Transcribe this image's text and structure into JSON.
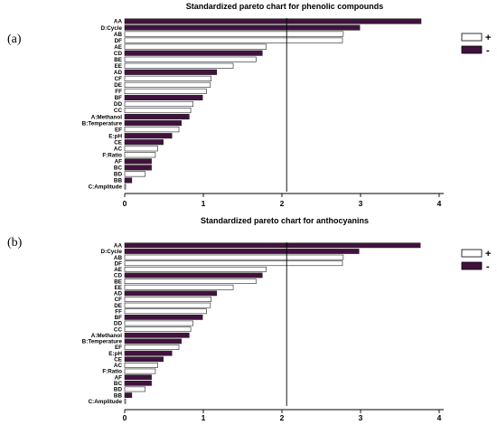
{
  "panels": [
    {
      "label": "(a)"
    },
    {
      "label": "(b)"
    }
  ],
  "colors": {
    "negative": "#42123f",
    "positive": "#ffffff",
    "outline": "#222222"
  },
  "chart_data": [
    {
      "type": "bar",
      "orientation": "horizontal",
      "title": "Standardized pareto chart for phenolic compounds",
      "categories": [
        "AA",
        "D:Cycle",
        "AB",
        "DF",
        "AE",
        "CD",
        "BE",
        "EE",
        "AD",
        "CF",
        "DE",
        "FF",
        "BF",
        "DD",
        "CC",
        "A:Methanol",
        "B:Temperature",
        "EF",
        "E:pH",
        "CE",
        "AC",
        "F:Ratio",
        "AF",
        "BC",
        "BD",
        "BB",
        "C:Amplitude"
      ],
      "values": [
        3.77,
        2.99,
        2.78,
        2.77,
        1.8,
        1.75,
        1.67,
        1.38,
        1.17,
        1.1,
        1.09,
        1.04,
        0.99,
        0.87,
        0.84,
        0.82,
        0.72,
        0.69,
        0.6,
        0.49,
        0.42,
        0.39,
        0.34,
        0.34,
        0.26,
        0.09,
        0.01
      ],
      "signs": [
        "-",
        "-",
        "+",
        "+",
        "+",
        "-",
        "+",
        "+",
        "-",
        "+",
        "+",
        "+",
        "-",
        "+",
        "+",
        "-",
        "-",
        "+",
        "-",
        "-",
        "+",
        "+",
        "-",
        "-",
        "+",
        "-",
        "+"
      ],
      "legend": [
        "+",
        "-"
      ],
      "legend_position": "top-right",
      "reference_line": 2.06,
      "xticks": [
        "0",
        "1",
        "2",
        "3",
        "4"
      ],
      "xlim": [
        0,
        4.1
      ]
    },
    {
      "type": "bar",
      "orientation": "horizontal",
      "title": "Standardized pareto chart for anthocyanins",
      "categories": [
        "AA",
        "D:Cycle",
        "AB",
        "DF",
        "AE",
        "CD",
        "BE",
        "EE",
        "AD",
        "CF",
        "DE",
        "FF",
        "BF",
        "DD",
        "CC",
        "A:Methanol",
        "B:Temperature",
        "EF",
        "E:pH",
        "CE",
        "AC",
        "F:Ratio",
        "AF",
        "BC",
        "BD",
        "BB",
        "C:Amplitude"
      ],
      "values": [
        3.76,
        2.98,
        2.78,
        2.77,
        1.8,
        1.75,
        1.67,
        1.38,
        1.17,
        1.1,
        1.09,
        1.04,
        0.99,
        0.87,
        0.84,
        0.82,
        0.72,
        0.69,
        0.6,
        0.49,
        0.42,
        0.39,
        0.34,
        0.34,
        0.26,
        0.09,
        0.01
      ],
      "signs": [
        "-",
        "-",
        "+",
        "+",
        "+",
        "-",
        "+",
        "+",
        "-",
        "+",
        "+",
        "+",
        "-",
        "+",
        "+",
        "-",
        "-",
        "+",
        "-",
        "-",
        "+",
        "+",
        "-",
        "-",
        "+",
        "-",
        "+"
      ],
      "legend": [
        "+",
        "-"
      ],
      "legend_position": "top-right",
      "reference_line": 2.06,
      "xticks": [
        "0",
        "1",
        "2",
        "3",
        "4"
      ],
      "xlim": [
        0,
        4.1
      ]
    }
  ]
}
